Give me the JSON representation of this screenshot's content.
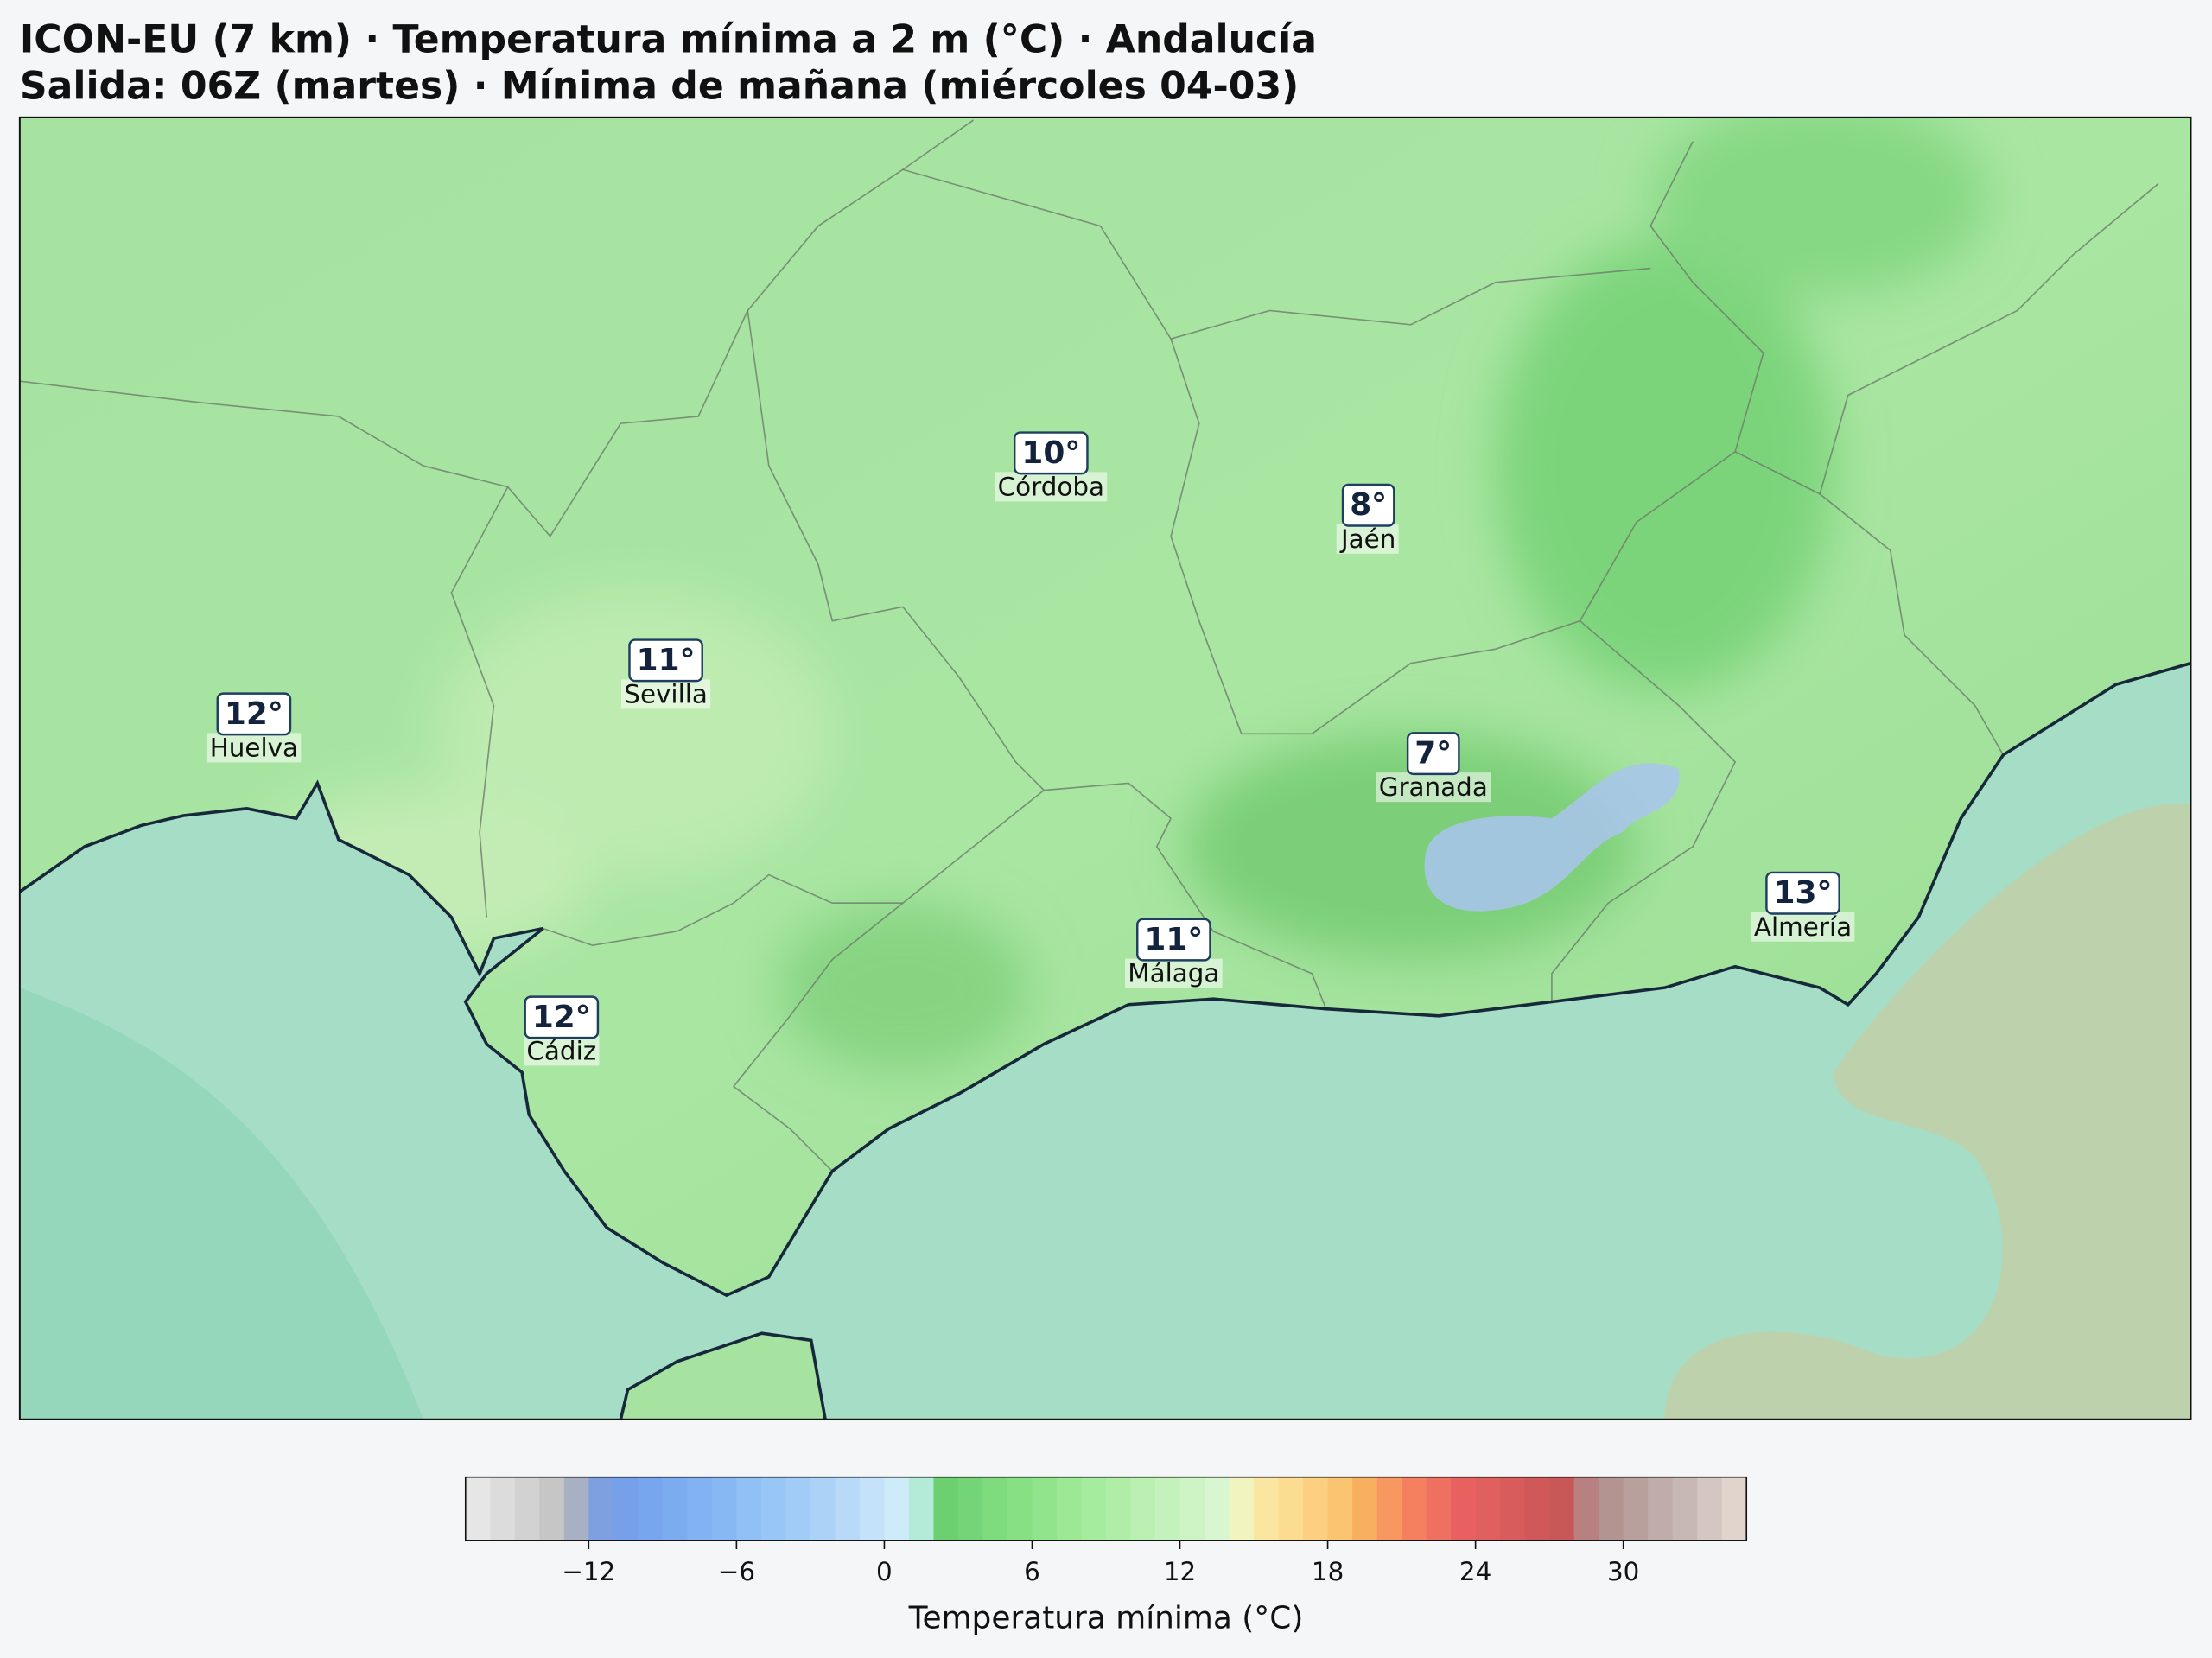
{
  "header": {
    "title": "ICON-EU (7 km) · Temperatura mínima a 2 m (°C) · Andalucía",
    "subtitle": "Salida: 06Z (martes) · Mínima de mañana (miércoles 04-03)"
  },
  "cities": [
    {
      "name": "Huelva",
      "temp": {
        "value": 12,
        "label": "12°"
      }
    },
    {
      "name": "Sevilla",
      "temp": {
        "value": 11,
        "label": "11°"
      }
    },
    {
      "name": "Córdoba",
      "temp": {
        "value": 10,
        "label": "10°"
      }
    },
    {
      "name": "Jaén",
      "temp": {
        "value": 8,
        "label": "8°"
      }
    },
    {
      "name": "Granada",
      "temp": {
        "value": 7,
        "label": "7°"
      }
    },
    {
      "name": "Cádiz",
      "temp": {
        "value": 12,
        "label": "12°"
      }
    },
    {
      "name": "Málaga",
      "temp": {
        "value": 11,
        "label": "11°"
      }
    },
    {
      "name": "Almería",
      "temp": {
        "value": 13,
        "label": "13°"
      }
    }
  ],
  "colorbar": {
    "label": "Temperatura mínima (°C)",
    "lim": [
      -17,
      35
    ],
    "ticks": [
      {
        "value": -12,
        "label": "−12"
      },
      {
        "value": -6,
        "label": "−6"
      },
      0,
      6,
      12,
      18,
      24,
      30
    ],
    "colors": [
      "#e6e6e6",
      "#dcdcdc",
      "#d2d2d2",
      "#c6c6c6",
      "#a8b0c4",
      "#7fa0e0",
      "#76a0ea",
      "#78a6ee",
      "#7cacf0",
      "#82b2f2",
      "#88b8f4",
      "#90c0f6",
      "#98c6f6",
      "#a2ccf8",
      "#acd2f8",
      "#b8daf8",
      "#c4e2fa",
      "#cdebf8",
      "#b4ead8",
      "#6cd070",
      "#74d478",
      "#7edc7e",
      "#88e084",
      "#92e48c",
      "#9ce894",
      "#a6ec9e",
      "#b0eea8",
      "#baf0b2",
      "#c4f2bc",
      "#cef4c6",
      "#d8f6d0",
      "#f2f4c0",
      "#fae6a0",
      "#fcdc90",
      "#fcd080",
      "#fac470",
      "#f8b060",
      "#f89860",
      "#f48060",
      "#ee7060",
      "#e86060",
      "#e06060",
      "#d85c5c",
      "#d05858",
      "#c85858",
      "#b88080",
      "#b49490",
      "#b8a09c",
      "#c0aca8",
      "#c8b8b4",
      "#d4c6c0",
      "#e0d4cc"
    ]
  }
}
